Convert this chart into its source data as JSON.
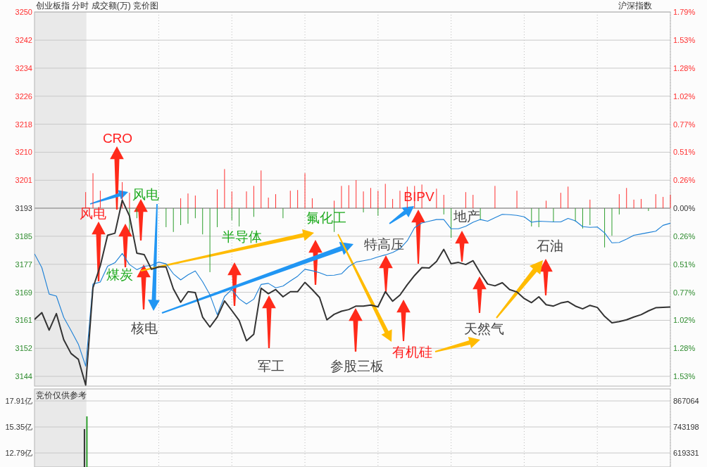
{
  "chart_data": [
    {
      "type": "line",
      "title": "创业板指  分时 成交额(万) 竞价图",
      "annotations": [
        "沪深指数",
        "风电",
        "CRO",
        "风电",
        "煤炭",
        "核电",
        "半导体",
        "氟化工",
        "军工",
        "参股三板",
        "特高压",
        "BIPV",
        "有机硅",
        "地产",
        "天然气",
        "石油"
      ],
      "categories": [
        null,
        null,
        null,
        null,
        null,
        null,
        null,
        null,
        null,
        null,
        null,
        null,
        null,
        null,
        null,
        null,
        null,
        null,
        null,
        null,
        null,
        null,
        null,
        null,
        null,
        null,
        null,
        null,
        null,
        null,
        null,
        null,
        null,
        null,
        null,
        null,
        null,
        null,
        null,
        null,
        null,
        null,
        null,
        null,
        null,
        null,
        null,
        null,
        null,
        null,
        null,
        null,
        null,
        null,
        null,
        null,
        null,
        null,
        null,
        null,
        null,
        null,
        null,
        null,
        null,
        null,
        null,
        null,
        null,
        null,
        null,
        null,
        null,
        null,
        null,
        null,
        null,
        null,
        null,
        null,
        null,
        null,
        null,
        null,
        null,
        null,
        null,
        null
      ],
      "ylim": [
        3141.5,
        3250.4
      ],
      "yticks": [
        {
          "value": 3144.35,
          "label": "3144"
        },
        {
          "value": 3152.5,
          "label": "3152"
        },
        {
          "value": 3160.65,
          "label": "3161"
        },
        {
          "value": 3168.81,
          "label": "3169"
        },
        {
          "value": 3176.96,
          "label": "3177"
        },
        {
          "value": 3185.12,
          "label": "3185"
        },
        {
          "value": 3193.27,
          "label": "3193"
        },
        {
          "value": 3201.42,
          "label": "3201"
        },
        {
          "value": 3209.58,
          "label": "3210"
        },
        {
          "value": 3217.73,
          "label": "3218"
        },
        {
          "value": 3225.89,
          "label": "3226"
        },
        {
          "value": 3234.04,
          "label": "3234"
        },
        {
          "value": 3242.19,
          "label": "3242"
        },
        {
          "value": 3250.35,
          "label": "3250"
        }
      ],
      "y2lim": [
        -1.622,
        1.79
      ],
      "y2ticks": [
        {
          "value": -1.533,
          "label": "1.53%"
        },
        {
          "value": -1.2775,
          "label": "1.28%"
        },
        {
          "value": -1.022,
          "label": "1.02%"
        },
        {
          "value": -0.7665,
          "label": "0.77%"
        },
        {
          "value": -0.511,
          "label": "0.51%"
        },
        {
          "value": -0.2555,
          "label": "0.26%"
        },
        {
          "value": 0,
          "label": "0.00%"
        },
        {
          "value": 0.2555,
          "label": "0.26%"
        },
        {
          "value": 0.511,
          "label": "0.51%"
        },
        {
          "value": 0.7665,
          "label": "0.77%"
        },
        {
          "value": 1.022,
          "label": "1.02%"
        },
        {
          "value": 1.2775,
          "label": "1.28%"
        },
        {
          "value": 1.533,
          "label": "1.53%"
        },
        {
          "value": 1.7885,
          "label": "1.79%"
        }
      ],
      "grid": true,
      "tick_labels": "y",
      "ref_lines": [
        {
          "axis": "y",
          "value": 3193.27,
          "color": "#b0b0b0"
        }
      ],
      "series": [
        {
          "type": "bar",
          "color": "#ff3030",
          "base": [
            null,
            null,
            null,
            null,
            null,
            null,
            null,
            3193.27,
            3193.27,
            3193.27,
            null,
            null,
            3193.27,
            3193.27,
            null,
            null,
            null,
            null,
            null,
            null,
            3193.27,
            3193.27,
            3193.27,
            null,
            null,
            3193.27,
            3193.27,
            3193.27,
            null,
            3193.27,
            3193.27,
            3193.27,
            3193.27,
            3193.27,
            null,
            3193.27,
            3193.27,
            3193.27,
            3193.27,
            null,
            null,
            3193.27,
            3193.27,
            3193.27,
            3193.27,
            3193.27,
            3193.27,
            3193.27,
            3193.27,
            3193.27,
            3193.27,
            3193.27,
            3193.27,
            3193.27,
            null,
            3193.27,
            3193.27,
            null,
            null,
            3193.27,
            3193.27,
            null,
            null,
            3193.27,
            null,
            null,
            3193.27,
            null,
            null,
            null,
            3193.27,
            null,
            3193.27,
            3193.27,
            null,
            null,
            3193.27,
            null,
            null,
            null,
            3193.27,
            3193.27,
            3193.27,
            3193.27,
            null,
            3193.27,
            3193.27,
            3193.27
          ],
          "values": [
            null,
            null,
            null,
            null,
            null,
            null,
            null,
            4.7,
            10.2,
            5.1,
            null,
            null,
            7.6,
            4.5,
            null,
            null,
            null,
            null,
            null,
            null,
            2.9,
            4.3,
            3.7,
            null,
            null,
            5.5,
            11.4,
            4.9,
            null,
            4.9,
            6.5,
            11.0,
            3.1,
            4.1,
            null,
            5.1,
            5.3,
            10.2,
            2.9,
            null,
            null,
            2.2,
            6.5,
            6.7,
            8.2,
            4.9,
            5.9,
            5.1,
            7.1,
            2.7,
            5.1,
            6.3,
            6.5,
            6.9,
            null,
            5.7,
            3.9,
            null,
            null,
            4.7,
            3.9,
            null,
            null,
            6.5,
            null,
            null,
            5.1,
            null,
            null,
            null,
            2.2,
            null,
            4.5,
            6.3,
            null,
            null,
            2.5,
            null,
            null,
            null,
            4.1,
            5.9,
            2.5,
            2.7,
            null,
            4.1,
            3.3,
            3.9
          ]
        },
        {
          "type": "bar",
          "color": "#2e9e2e",
          "base": [
            null,
            null,
            null,
            null,
            null,
            null,
            null,
            null,
            null,
            null,
            null,
            null,
            null,
            3193.27,
            3193.27,
            null,
            null,
            null,
            3193.27,
            3193.27,
            3193.27,
            3193.27,
            3193.27,
            3193.27,
            3193.27,
            3193.27,
            null,
            3193.27,
            3193.27,
            null,
            3193.27,
            null,
            null,
            null,
            3193.27,
            null,
            null,
            null,
            null,
            null,
            null,
            3193.27,
            null,
            null,
            null,
            3193.27,
            null,
            3193.27,
            null,
            null,
            null,
            null,
            null,
            null,
            null,
            null,
            3193.27,
            3193.27,
            null,
            null,
            null,
            3193.27,
            null,
            null,
            null,
            null,
            null,
            null,
            3193.27,
            3193.27,
            null,
            3193.27,
            null,
            null,
            3193.27,
            3193.27,
            3193.27,
            null,
            3193.27,
            3193.27,
            3193.27,
            null,
            null,
            null,
            3193.27,
            null,
            null,
            null
          ],
          "values": [
            null,
            null,
            null,
            null,
            null,
            null,
            null,
            null,
            null,
            null,
            null,
            null,
            null,
            -6.9,
            -2.9,
            null,
            null,
            null,
            -5.5,
            -6.9,
            -4.9,
            -4.5,
            -2.9,
            -7.6,
            -18.6,
            -5.5,
            null,
            -3.5,
            -5.3,
            null,
            -2.5,
            null,
            null,
            null,
            -2.9,
            null,
            null,
            null,
            null,
            null,
            null,
            -6.9,
            null,
            null,
            null,
            -1.2,
            null,
            -2.2,
            null,
            null,
            null,
            null,
            null,
            null,
            null,
            null,
            -1.8,
            -8.6,
            null,
            null,
            null,
            -3.5,
            null,
            null,
            null,
            null,
            null,
            null,
            -5.3,
            -5.5,
            null,
            -3.9,
            null,
            null,
            -3.9,
            -5.9,
            -4.9,
            null,
            -11.4,
            -8.0,
            -1.8,
            null,
            null,
            null,
            -0.8,
            null,
            null,
            null
          ]
        },
        {
          "color": "#1a7fd6",
          "values": [
            3180.0,
            3176.0,
            3168.3,
            3167.7,
            3161.5,
            3157.7,
            3153.7,
            3147.3,
            3171.2,
            3171.8,
            3176.4,
            3177.4,
            3180.1,
            3176.9,
            3175.4,
            3176.4,
            3176.6,
            3177.6,
            3177.1,
            3174.2,
            3172.4,
            3173.9,
            3175.0,
            3171.9,
            3168.1,
            3162.3,
            3167.6,
            3169.6,
            3166.9,
            3165.4,
            3166.8,
            3171.1,
            3171.4,
            3170.1,
            3170.6,
            3172.1,
            3173.5,
            3175.5,
            3175.1,
            3174.5,
            3173.7,
            3173.8,
            3174.2,
            3176.3,
            3177.6,
            3178.0,
            3178.4,
            3179.1,
            3179.7,
            3180.4,
            3181.5,
            3183.8,
            3187.6,
            3189.0,
            3189.5,
            3190.0,
            3190.0,
            3187.3,
            3187.3,
            3188.0,
            3189.2,
            3190.0,
            3189.5,
            3190.5,
            3191.5,
            3191.4,
            3191.2,
            3190.8,
            3189.2,
            3189.5,
            3189.4,
            3189.3,
            3189.3,
            3190.3,
            3189.6,
            3187.9,
            3187.7,
            3187.8,
            3186.1,
            3183.2,
            3183.3,
            3184.3,
            3185.4,
            3185.8,
            3186.2,
            3186.6,
            3188.3,
            3188.9
          ]
        },
        {
          "color": "#333333",
          "values": [
            3160.9,
            3162.9,
            3157.8,
            3162.6,
            3155.0,
            3151.0,
            3149.3,
            3141.8,
            3170.1,
            3176.5,
            3185.4,
            3186.0,
            3195.6,
            3191.0,
            3180.2,
            3179.8,
            3175.5,
            3176.2,
            3176.2,
            3169.8,
            3165.9,
            3169.0,
            3168.7,
            3161.6,
            3158.7,
            3161.6,
            3166.3,
            3163.5,
            3160.6,
            3154.7,
            3156.6,
            3170.0,
            3168.4,
            3169.6,
            3167.5,
            3169.0,
            3169.0,
            3171.7,
            3169.6,
            3167.3,
            3160.8,
            3162.4,
            3163.3,
            3163.8,
            3164.8,
            3164.8,
            3165.1,
            3164.6,
            3169.0,
            3166.2,
            3168.0,
            3171.0,
            3173.7,
            3176.0,
            3175.9,
            3177.8,
            3181.3,
            3177.1,
            3177.5,
            3176.9,
            3178.0,
            3174.4,
            3171.2,
            3170.7,
            3171.6,
            3169.6,
            3168.9,
            3167.0,
            3165.8,
            3167.5,
            3165.2,
            3164.8,
            3165.7,
            3166.1,
            3164.8,
            3164.0,
            3165.0,
            3164.4,
            3161.8,
            3159.9,
            3160.3,
            3160.8,
            3161.6,
            3162.3,
            3163.4,
            3164.3,
            3164.4,
            3164.5
          ]
        }
      ]
    },
    {
      "type": "bar",
      "annotations": [
        "竞价仅供参考"
      ],
      "categories": [
        null,
        null,
        null,
        null,
        null,
        null,
        null,
        null,
        null,
        null,
        null,
        null,
        null,
        null,
        null,
        null,
        null,
        null,
        null,
        null,
        null,
        null,
        null,
        null,
        null,
        null,
        null,
        null,
        null,
        null,
        null,
        null,
        null,
        null,
        null,
        null,
        null,
        null,
        null,
        null,
        null,
        null,
        null,
        null,
        null,
        null,
        null,
        null,
        null,
        null,
        null,
        null,
        null,
        null,
        null,
        null,
        null,
        null,
        null,
        null,
        null,
        null,
        null,
        null,
        null,
        null,
        null,
        null,
        null,
        null,
        null,
        null,
        null,
        null,
        null,
        null,
        null,
        null,
        null,
        null,
        null,
        null,
        null,
        null,
        null,
        null,
        null,
        null
      ],
      "series": [
        {
          "color": "#333333",
          "values": [
            null,
            null,
            null,
            null,
            null,
            null,
            null,
            15.14,
            null,
            null,
            null,
            null,
            null,
            null,
            null,
            null,
            null,
            null,
            null,
            null,
            null,
            null,
            null,
            null,
            null,
            null,
            null,
            null,
            null,
            null,
            null,
            null,
            null,
            null,
            null,
            null,
            null,
            null,
            null,
            null,
            null,
            null,
            null,
            null,
            null,
            null,
            null,
            null,
            null,
            null,
            null,
            null,
            null,
            null,
            null,
            null,
            null,
            null,
            null,
            null,
            null,
            null,
            null,
            null,
            null,
            null,
            null,
            null,
            null,
            null,
            null,
            null,
            null,
            null,
            null,
            null,
            null,
            null,
            null,
            null,
            null,
            null,
            null,
            null,
            null,
            null,
            null,
            null
          ]
        },
        {
          "color": "#2e9e2e",
          "values": [
            null,
            null,
            null,
            null,
            null,
            null,
            null,
            16.39,
            null,
            null,
            null,
            null,
            null,
            null,
            null,
            null,
            null,
            null,
            null,
            null,
            null,
            null,
            null,
            null,
            null,
            null,
            null,
            null,
            null,
            null,
            null,
            null,
            null,
            null,
            null,
            null,
            null,
            null,
            null,
            null,
            null,
            null,
            null,
            null,
            null,
            null,
            null,
            null,
            null,
            null,
            null,
            null,
            null,
            null,
            null,
            null,
            null,
            null,
            null,
            null,
            null,
            null,
            null,
            null,
            null,
            null,
            null,
            null,
            null,
            null,
            null,
            null,
            null,
            null,
            null,
            null,
            null,
            null,
            null,
            null,
            null,
            null,
            null,
            null,
            null,
            null,
            null,
            null
          ]
        }
      ],
      "ylim": [
        11.41,
        19.09
      ],
      "yticks": [
        {
          "value": 12.79,
          "label": "12.79亿"
        },
        {
          "value": 15.35,
          "label": "15.35亿"
        },
        {
          "value": 17.91,
          "label": "17.91亿"
        }
      ],
      "y2lim": [
        552559,
        924159
      ],
      "y2ticks": [
        619331,
        743198,
        867064
      ],
      "grid": true,
      "tick_labels": "y"
    }
  ]
}
